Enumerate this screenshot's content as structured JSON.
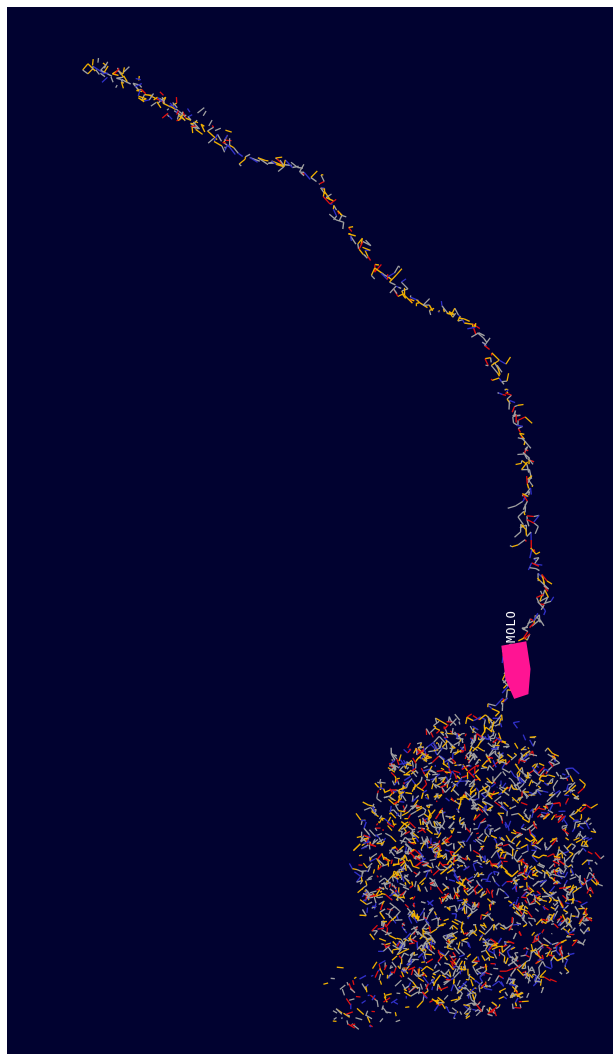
{
  "viewer": {
    "background_color": "#010230",
    "frame_color": "#ffffff",
    "heteroatom_label": "MOLO",
    "heteroatom_color": "#ff1493",
    "atom_colors": {
      "carbon": "#a0a0a0",
      "nitrogen": "#3030c8",
      "oxygen": "#e01010",
      "sulfur_or_polar": "#f0b000"
    },
    "representation": "wireframe"
  }
}
